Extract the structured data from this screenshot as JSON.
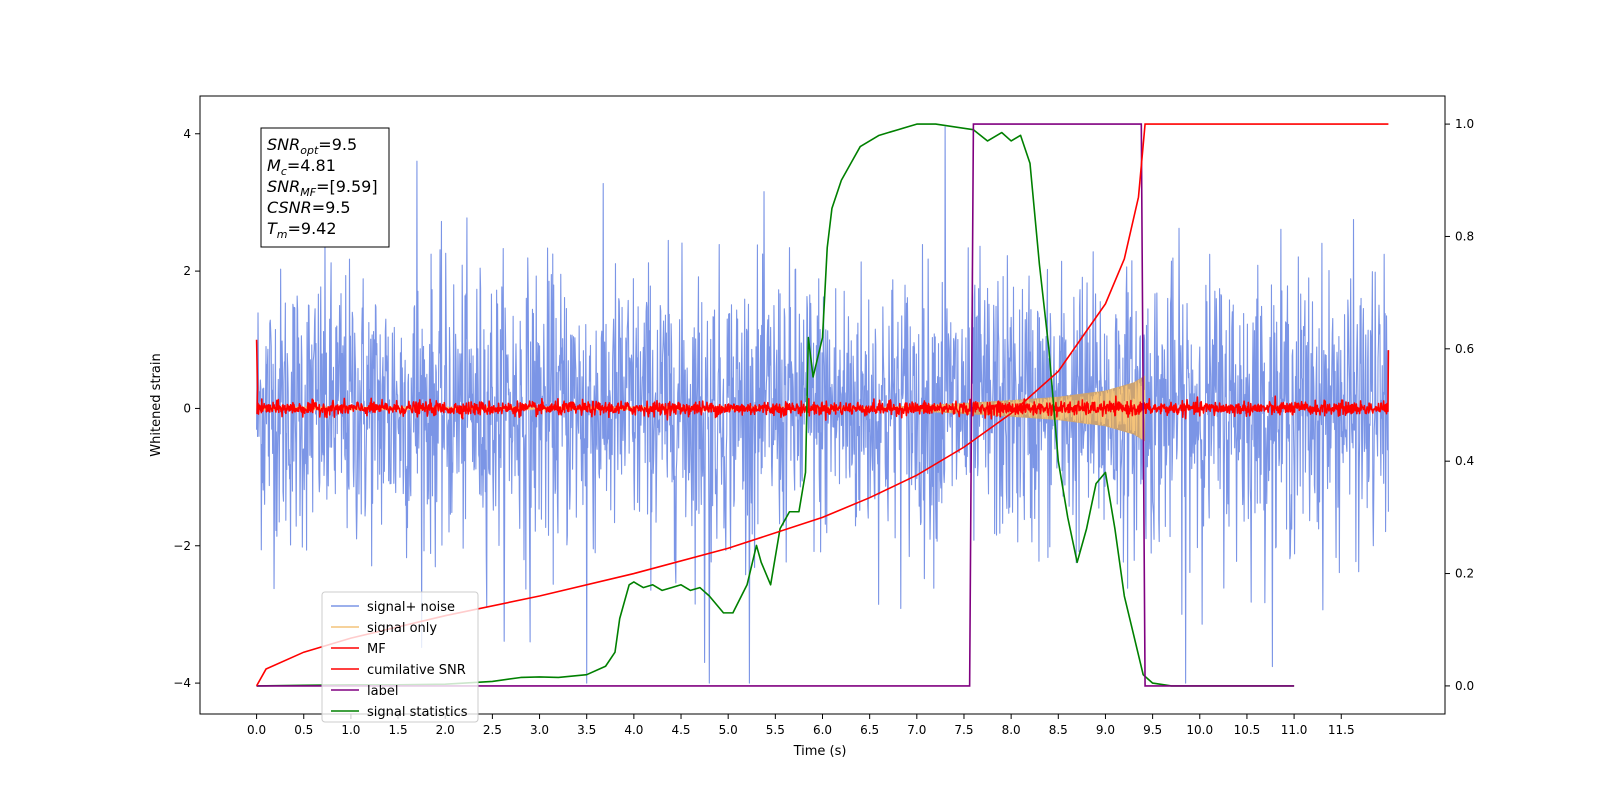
{
  "chart_data": {
    "type": "line",
    "xlabel": "Time (s)",
    "ylabel_left": "Whitened strain",
    "ylabel_right": "",
    "x_ticks": [
      "0.0",
      "0.5",
      "1.0",
      "1.5",
      "2.0",
      "2.5",
      "3.0",
      "3.5",
      "4.0",
      "4.5",
      "5.0",
      "5.5",
      "6.0",
      "6.5",
      "7.0",
      "7.5",
      "8.0",
      "8.5",
      "9.0",
      "9.5",
      "10.0",
      "10.5",
      "11.0",
      "11.5"
    ],
    "y_left_ticks": [
      "-4",
      "-2",
      "0",
      "2",
      "4"
    ],
    "y_right_ticks": [
      "0.0",
      "0.2",
      "0.4",
      "0.6",
      "0.8",
      "1.0"
    ],
    "xlim": [
      -0.6,
      12.6
    ],
    "ylim_left": [
      -4.45,
      4.55
    ],
    "ylim_right": [
      -0.05,
      1.05
    ],
    "grid": false,
    "legend_position": "lower-left",
    "legend": [
      "signal+ noise",
      "signal only",
      "MF",
      "cumilative SNR",
      "label",
      "signal statistics"
    ],
    "colors": {
      "signal_noise": "#7b95e6",
      "signal_only": "#f4c37a",
      "signal_only_fill": "#c9a274",
      "mf": "#ff0000",
      "cumulative_snr": "#ff0000",
      "label": "#800080",
      "signal_statistics": "#008000"
    },
    "info_box": {
      "lines": [
        {
          "sym": "SNR",
          "sub": "opt",
          "val": "=9.5"
        },
        {
          "sym": "M",
          "sub": "c",
          "val": "=4.81"
        },
        {
          "sym": "SNR",
          "sub": "MF",
          "val": "=[9.59]"
        },
        {
          "sym": "CSNR",
          "sub": "",
          "val": "=9.5"
        },
        {
          "sym": "T",
          "sub": "m",
          "val": "=9.42"
        }
      ]
    },
    "series": [
      {
        "name": "signal+ noise",
        "axis": "left",
        "style": "noise",
        "t_range": [
          0.0,
          12.0
        ],
        "std": 1.0,
        "max_peak": 4.1,
        "min_peak": -4.0,
        "spikes": [
          {
            "x": 7.3,
            "y": 4.1
          },
          {
            "x": 3.5,
            "y": -4.0
          },
          {
            "x": 4.8,
            "y": -4.0
          },
          {
            "x": 9.85,
            "y": -4.0
          },
          {
            "x": 1.7,
            "y": 3.6
          },
          {
            "x": 4.75,
            "y": -3.7
          },
          {
            "x": 2.9,
            "y": -3.4
          }
        ]
      },
      {
        "name": "signal only",
        "axis": "left",
        "style": "chirp",
        "amplitude_points": [
          [
            6.8,
            0.03
          ],
          [
            7.5,
            0.08
          ],
          [
            8.0,
            0.12
          ],
          [
            8.5,
            0.17
          ],
          [
            9.0,
            0.26
          ],
          [
            9.3,
            0.38
          ],
          [
            9.42,
            0.48
          ]
        ],
        "t_end": 9.42
      },
      {
        "name": "MF",
        "axis": "left",
        "style": "noise",
        "t_range": [
          0.0,
          12.0
        ],
        "std": 0.05,
        "max_peak": 0.3,
        "min_peak": -0.17,
        "endpoints": [
          [
            0.0,
            1.0
          ],
          [
            12.0,
            0.85
          ]
        ]
      },
      {
        "name": "cumilative SNR",
        "axis": "right",
        "points": [
          [
            0.0,
            0.0
          ],
          [
            0.1,
            0.03
          ],
          [
            0.5,
            0.06
          ],
          [
            1.0,
            0.085
          ],
          [
            2.0,
            0.125
          ],
          [
            3.0,
            0.16
          ],
          [
            4.0,
            0.2
          ],
          [
            5.0,
            0.245
          ],
          [
            6.0,
            0.3
          ],
          [
            6.5,
            0.335
          ],
          [
            7.0,
            0.375
          ],
          [
            7.5,
            0.425
          ],
          [
            8.0,
            0.485
          ],
          [
            8.5,
            0.56
          ],
          [
            9.0,
            0.68
          ],
          [
            9.2,
            0.76
          ],
          [
            9.35,
            0.87
          ],
          [
            9.42,
            1.0
          ],
          [
            12.0,
            1.0
          ]
        ]
      },
      {
        "name": "label",
        "axis": "right",
        "points": [
          [
            0.0,
            0.0
          ],
          [
            7.56,
            0.0
          ],
          [
            7.6,
            1.0
          ],
          [
            9.38,
            1.0
          ],
          [
            9.42,
            0.0
          ],
          [
            11.0,
            0.0
          ]
        ]
      },
      {
        "name": "signal statistics",
        "axis": "right",
        "points": [
          [
            0.0,
            0.0
          ],
          [
            0.5,
            0.001
          ],
          [
            1.0,
            0.002
          ],
          [
            1.5,
            0.002
          ],
          [
            2.0,
            0.003
          ],
          [
            2.5,
            0.008
          ],
          [
            2.8,
            0.015
          ],
          [
            3.0,
            0.016
          ],
          [
            3.2,
            0.015
          ],
          [
            3.5,
            0.02
          ],
          [
            3.7,
            0.035
          ],
          [
            3.8,
            0.06
          ],
          [
            3.85,
            0.12
          ],
          [
            3.95,
            0.18
          ],
          [
            4.0,
            0.185
          ],
          [
            4.05,
            0.18
          ],
          [
            4.1,
            0.175
          ],
          [
            4.2,
            0.18
          ],
          [
            4.3,
            0.17
          ],
          [
            4.4,
            0.175
          ],
          [
            4.5,
            0.18
          ],
          [
            4.6,
            0.17
          ],
          [
            4.7,
            0.175
          ],
          [
            4.8,
            0.16
          ],
          [
            4.95,
            0.13
          ],
          [
            5.05,
            0.13
          ],
          [
            5.2,
            0.18
          ],
          [
            5.3,
            0.25
          ],
          [
            5.35,
            0.22
          ],
          [
            5.45,
            0.18
          ],
          [
            5.55,
            0.28
          ],
          [
            5.65,
            0.31
          ],
          [
            5.75,
            0.31
          ],
          [
            5.82,
            0.38
          ],
          [
            5.85,
            0.62
          ],
          [
            5.9,
            0.55
          ],
          [
            6.0,
            0.62
          ],
          [
            6.05,
            0.78
          ],
          [
            6.1,
            0.85
          ],
          [
            6.2,
            0.9
          ],
          [
            6.3,
            0.93
          ],
          [
            6.4,
            0.96
          ],
          [
            6.6,
            0.98
          ],
          [
            6.8,
            0.99
          ],
          [
            7.0,
            1.0
          ],
          [
            7.2,
            1.0
          ],
          [
            7.6,
            0.99
          ],
          [
            7.75,
            0.97
          ],
          [
            7.9,
            0.985
          ],
          [
            8.0,
            0.97
          ],
          [
            8.1,
            0.98
          ],
          [
            8.2,
            0.93
          ],
          [
            8.3,
            0.75
          ],
          [
            8.4,
            0.6
          ],
          [
            8.5,
            0.4
          ],
          [
            8.6,
            0.3
          ],
          [
            8.7,
            0.22
          ],
          [
            8.8,
            0.28
          ],
          [
            8.9,
            0.36
          ],
          [
            9.0,
            0.38
          ],
          [
            9.1,
            0.28
          ],
          [
            9.2,
            0.16
          ],
          [
            9.3,
            0.09
          ],
          [
            9.4,
            0.02
          ],
          [
            9.5,
            0.005
          ],
          [
            9.7,
            0.0
          ],
          [
            10.0,
            0.0
          ],
          [
            11.0,
            0.0
          ]
        ]
      }
    ]
  }
}
